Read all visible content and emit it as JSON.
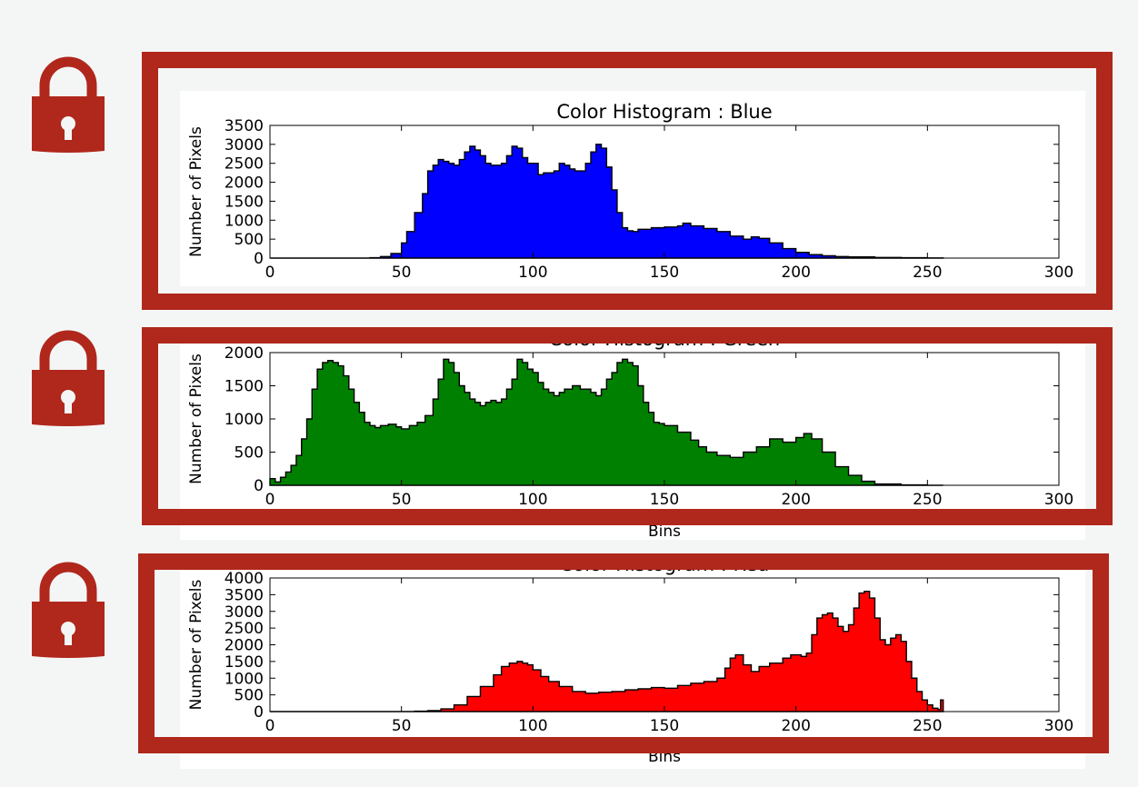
{
  "colors": {
    "frame": "#b0271c",
    "lock": "#b0271c",
    "background": "#f4f6f6"
  },
  "icons": [
    "lock-icon",
    "lock-icon",
    "lock-icon"
  ],
  "chart_data": [
    {
      "type": "area",
      "title": "Color Histogram : Blue",
      "xlabel": "",
      "ylabel": "Number of Pixels",
      "xlim": [
        0,
        300
      ],
      "ylim": [
        0,
        3500
      ],
      "xticks": [
        0,
        50,
        100,
        150,
        200,
        250,
        300
      ],
      "yticks": [
        0,
        500,
        1000,
        1500,
        2000,
        2500,
        3000,
        3500
      ],
      "grid": false,
      "series": [
        {
          "color": "#0000ff",
          "x": [
            0,
            38,
            42,
            46,
            50,
            52,
            55,
            58,
            60,
            62,
            64,
            66,
            68,
            70,
            72,
            74,
            76,
            78,
            80,
            82,
            84,
            86,
            88,
            90,
            92,
            94,
            96,
            98,
            100,
            102,
            104,
            106,
            108,
            110,
            112,
            114,
            116,
            118,
            120,
            122,
            124,
            126,
            128,
            130,
            132,
            134,
            136,
            138,
            140,
            145,
            150,
            155,
            157,
            160,
            165,
            170,
            175,
            180,
            183,
            186,
            190,
            195,
            200,
            205,
            210,
            215,
            220,
            230,
            240,
            250,
            256
          ],
          "y": [
            0,
            10,
            40,
            120,
            400,
            700,
            1200,
            1700,
            2300,
            2450,
            2600,
            2550,
            2500,
            2450,
            2600,
            2800,
            2950,
            2850,
            2700,
            2500,
            2450,
            2450,
            2500,
            2700,
            2950,
            2900,
            2650,
            2500,
            2500,
            2200,
            2250,
            2250,
            2300,
            2500,
            2450,
            2350,
            2300,
            2300,
            2500,
            2800,
            3000,
            2900,
            2400,
            1800,
            1200,
            800,
            720,
            700,
            760,
            800,
            820,
            850,
            920,
            850,
            780,
            700,
            580,
            500,
            560,
            520,
            400,
            250,
            150,
            90,
            60,
            40,
            30,
            15,
            10,
            5,
            0
          ]
        }
      ]
    },
    {
      "type": "area",
      "title": "Color Histogram : Green",
      "xlabel": "Bins",
      "ylabel": "Number of Pixels",
      "xlim": [
        0,
        300
      ],
      "ylim": [
        0,
        2000
      ],
      "xticks": [
        0,
        50,
        100,
        150,
        200,
        250,
        300
      ],
      "yticks": [
        0,
        500,
        1000,
        1500,
        2000
      ],
      "grid": false,
      "series": [
        {
          "color": "#008000",
          "x": [
            0,
            2,
            4,
            6,
            8,
            10,
            12,
            14,
            16,
            18,
            20,
            22,
            24,
            26,
            28,
            30,
            32,
            34,
            36,
            38,
            40,
            42,
            45,
            48,
            50,
            53,
            56,
            59,
            62,
            64,
            66,
            68,
            70,
            72,
            74,
            76,
            78,
            80,
            82,
            84,
            86,
            88,
            90,
            92,
            94,
            96,
            98,
            100,
            102,
            104,
            106,
            108,
            110,
            112,
            115,
            118,
            120,
            122,
            124,
            126,
            128,
            130,
            132,
            134,
            136,
            138,
            140,
            142,
            144,
            146,
            148,
            150,
            155,
            160,
            163,
            166,
            170,
            175,
            180,
            185,
            190,
            195,
            200,
            203,
            206,
            210,
            215,
            220,
            225,
            230,
            240,
            250,
            256
          ],
          "y": [
            100,
            50,
            120,
            200,
            300,
            450,
            700,
            1000,
            1450,
            1750,
            1850,
            1880,
            1850,
            1800,
            1650,
            1450,
            1250,
            1100,
            950,
            900,
            870,
            900,
            920,
            880,
            850,
            900,
            950,
            1050,
            1300,
            1600,
            1900,
            1850,
            1700,
            1500,
            1400,
            1300,
            1250,
            1200,
            1250,
            1280,
            1250,
            1300,
            1450,
            1600,
            1900,
            1850,
            1750,
            1700,
            1550,
            1450,
            1400,
            1350,
            1400,
            1450,
            1500,
            1450,
            1450,
            1400,
            1350,
            1450,
            1600,
            1700,
            1850,
            1900,
            1850,
            1800,
            1500,
            1250,
            1100,
            950,
            930,
            900,
            800,
            680,
            580,
            500,
            450,
            420,
            500,
            580,
            700,
            650,
            720,
            780,
            700,
            500,
            280,
            150,
            60,
            20,
            5,
            0,
            0
          ]
        }
      ]
    },
    {
      "type": "area",
      "title": "Color Histogram : Red",
      "xlabel": "Bins",
      "ylabel": "Number of Pixels",
      "xlim": [
        0,
        300
      ],
      "ylim": [
        0,
        4000
      ],
      "xticks": [
        0,
        50,
        100,
        150,
        200,
        250,
        300
      ],
      "yticks": [
        0,
        500,
        1000,
        1500,
        2000,
        2500,
        3000,
        3500,
        4000
      ],
      "grid": false,
      "series": [
        {
          "color": "#ff0000",
          "x": [
            0,
            55,
            60,
            65,
            70,
            75,
            80,
            85,
            88,
            91,
            94,
            96,
            98,
            100,
            103,
            106,
            110,
            115,
            120,
            125,
            130,
            135,
            140,
            145,
            150,
            155,
            160,
            165,
            170,
            173,
            175,
            177,
            180,
            183,
            186,
            190,
            195,
            198,
            200,
            202,
            204,
            206,
            208,
            210,
            212,
            214,
            216,
            218,
            220,
            222,
            224,
            226,
            228,
            230,
            232,
            234,
            236,
            238,
            240,
            242,
            244,
            246,
            248,
            250,
            252,
            254,
            255,
            256
          ],
          "y": [
            0,
            10,
            30,
            80,
            200,
            450,
            750,
            1100,
            1350,
            1450,
            1500,
            1450,
            1400,
            1250,
            1050,
            900,
            750,
            600,
            550,
            580,
            600,
            650,
            680,
            720,
            700,
            780,
            850,
            900,
            1000,
            1300,
            1600,
            1700,
            1400,
            1200,
            1350,
            1450,
            1600,
            1700,
            1700,
            1650,
            1750,
            2300,
            2800,
            2900,
            2950,
            2800,
            2550,
            2400,
            2600,
            3100,
            3550,
            3600,
            3400,
            2800,
            2150,
            2000,
            2200,
            2300,
            2100,
            1500,
            1000,
            600,
            350,
            200,
            100,
            60,
            350,
            0
          ]
        }
      ]
    }
  ]
}
